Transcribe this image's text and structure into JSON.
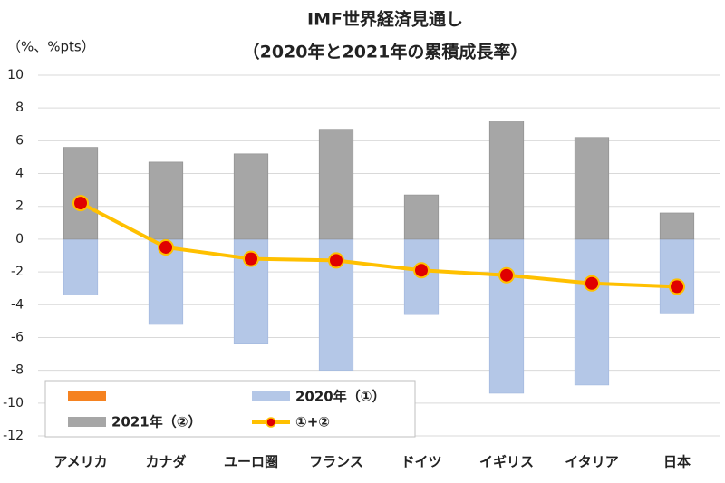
{
  "chart_data": {
    "type": "bar",
    "title": "IMF世界経済見通し",
    "subtitle": "（2020年と2021年の累積成長率）",
    "y_label": "（%、%pts）",
    "categories": [
      "アメリカ",
      "カナダ",
      "ユーロ圏",
      "フランス",
      "ドイツ",
      "イギリス",
      "イタリア",
      "日本"
    ],
    "series": [
      {
        "name": "2020年（①）",
        "type": "bar",
        "color": "#b4c7e7",
        "values": [
          -3.4,
          -5.2,
          -6.4,
          -8.0,
          -4.6,
          -9.4,
          -8.9,
          -4.5
        ]
      },
      {
        "name": "2021年（②）",
        "type": "bar",
        "color": "#a6a6a6",
        "values": [
          5.6,
          4.7,
          5.2,
          6.7,
          2.7,
          7.2,
          6.2,
          1.6
        ]
      },
      {
        "name": "①+②",
        "type": "line",
        "color": "#ffc000",
        "marker_color": "#e00000",
        "values": [
          2.2,
          -0.5,
          -1.2,
          -1.3,
          -1.9,
          -2.2,
          -2.7,
          -2.9
        ]
      }
    ],
    "ylim": [
      -12,
      10
    ],
    "yticks": [
      -12,
      -10,
      -8,
      -6,
      -4,
      -2,
      0,
      2,
      4,
      6,
      8,
      10
    ],
    "grid": true
  }
}
